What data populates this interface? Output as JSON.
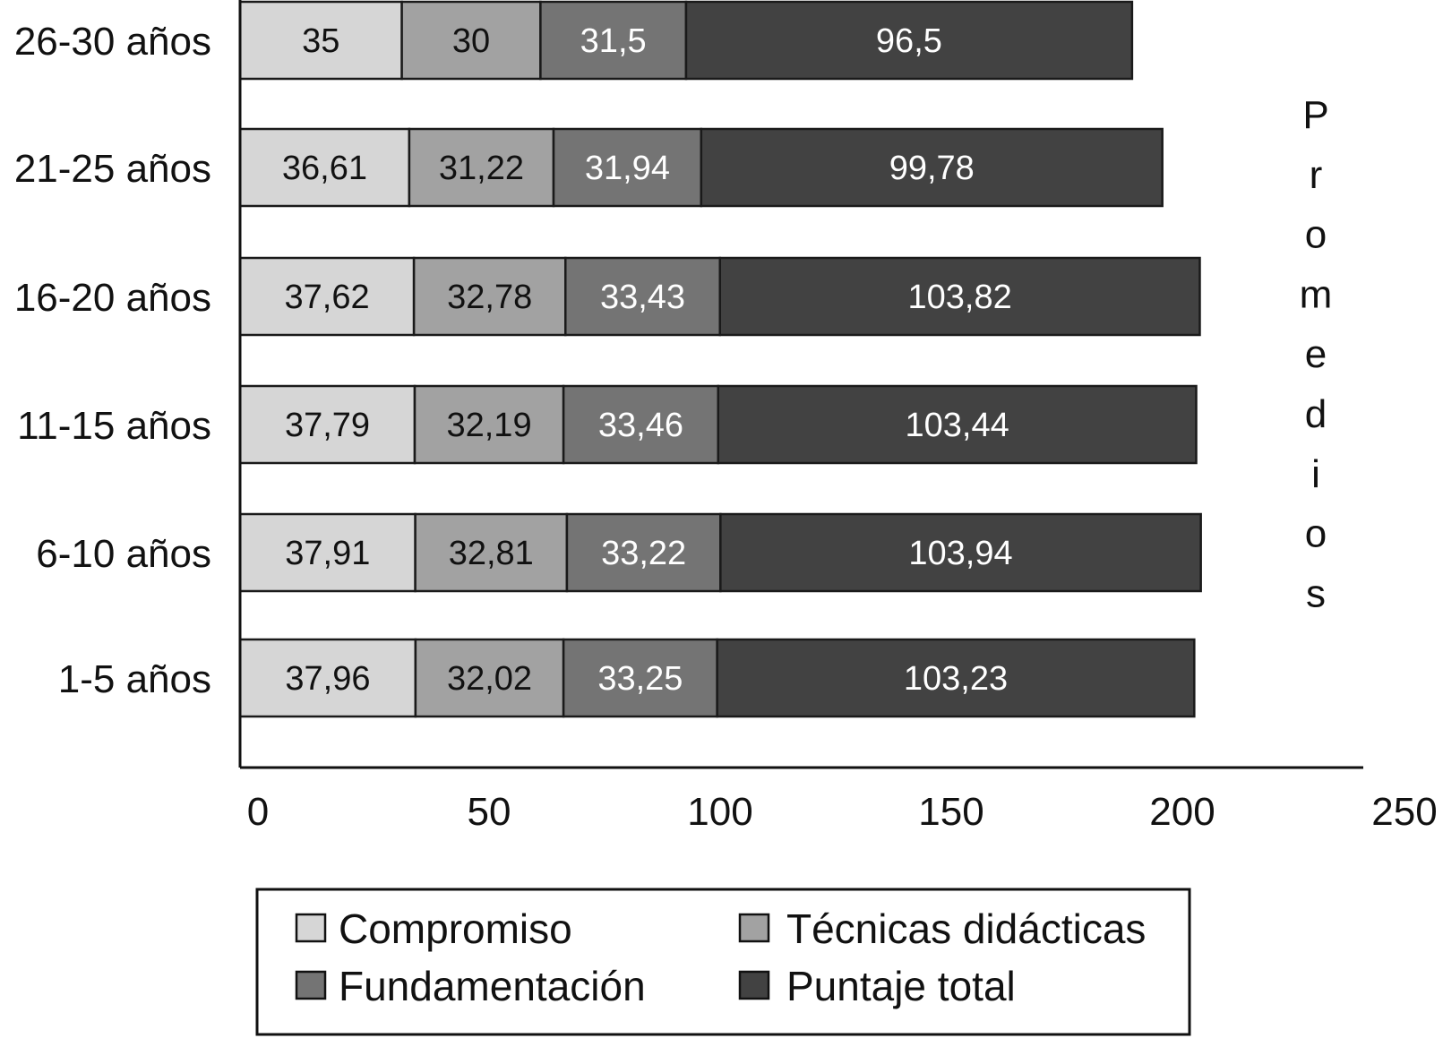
{
  "chart_data": {
    "type": "bar",
    "orientation": "horizontal",
    "stacked": true,
    "title": "",
    "xlabel": "",
    "ylabel": "Promedios",
    "categories": [
      "26-30 años",
      "21-25 años",
      "16-20 años",
      "11-15 años",
      "6-10 años",
      "1-5 años"
    ],
    "series": [
      {
        "name": "Compromiso",
        "color": "#d6d6d6",
        "label_color": "#111111",
        "values": [
          35,
          36.61,
          37.62,
          37.79,
          37.91,
          37.96
        ],
        "labels": [
          "35",
          "36,61",
          "37,62",
          "37,79",
          "37,91",
          "37,96"
        ]
      },
      {
        "name": "Técnicas didácticas",
        "color": "#a2a2a2",
        "label_color": "#111111",
        "values": [
          30,
          31.22,
          32.78,
          32.19,
          32.81,
          32.02
        ],
        "labels": [
          "30",
          "31,22",
          "32,78",
          "32,19",
          "32,81",
          "32,02"
        ]
      },
      {
        "name": "Fundamentación",
        "color": "#747474",
        "label_color": "#ffffff",
        "values": [
          31.5,
          31.94,
          33.43,
          33.46,
          33.22,
          33.25
        ],
        "labels": [
          "31,5",
          "31,94",
          "33,43",
          "33,46",
          "33,22",
          "33,25"
        ]
      },
      {
        "name": "Puntaje total",
        "color": "#424242",
        "label_color": "#ffffff",
        "values": [
          96.5,
          99.78,
          103.82,
          103.44,
          103.94,
          103.23
        ],
        "labels": [
          "96,5",
          "99,78",
          "103,82",
          "103,44",
          "103,94",
          "103,23"
        ]
      }
    ],
    "xlim": [
      0,
      250
    ],
    "xticks": [
      0,
      50,
      100,
      150,
      200,
      250
    ],
    "xtick_labels": [
      "0",
      "50",
      "100",
      "150",
      "200",
      "250"
    ],
    "grid": false,
    "legend_position": "bottom",
    "legend": [
      {
        "label": "Compromiso",
        "color": "#d6d6d6"
      },
      {
        "label": "Técnicas didácticas",
        "color": "#a2a2a2"
      },
      {
        "label": "Fundamentación",
        "color": "#747474"
      },
      {
        "label": "Puntaje total",
        "color": "#424242"
      }
    ]
  }
}
